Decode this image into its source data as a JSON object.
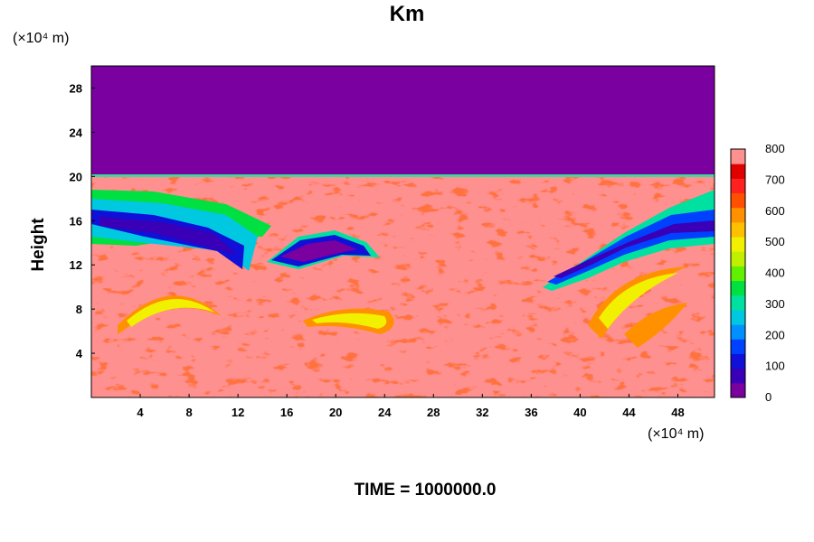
{
  "chart_data": {
    "type": "heatmap",
    "title": "Km",
    "xlabel": "",
    "ylabel": "Height",
    "x_unit": "(×10⁴ m)",
    "y_unit": "(×10⁴ m)",
    "footer": "TIME = 1000000.0",
    "xlim": [
      0,
      51
    ],
    "ylim": [
      0,
      30
    ],
    "x_ticks": [
      4,
      8,
      12,
      16,
      20,
      24,
      28,
      32,
      36,
      40,
      44,
      48
    ],
    "y_ticks": [
      4,
      8,
      12,
      16,
      20,
      24,
      28
    ],
    "colorbar": {
      "min": 0,
      "max": 800,
      "ticks": [
        0,
        100,
        200,
        300,
        400,
        500,
        600,
        700,
        800
      ],
      "palette": [
        "#7a00a0",
        "#3a00b8",
        "#1010d8",
        "#0040ff",
        "#0090ff",
        "#00c8e0",
        "#00e0a0",
        "#00e040",
        "#60f000",
        "#c0f000",
        "#f0f000",
        "#ffc000",
        "#ff9000",
        "#ff5000",
        "#ff2020",
        "#e00000",
        "#ff9090"
      ]
    },
    "colors": {
      "upper_layer": "#7a00a0",
      "background": "#ff9090"
    }
  }
}
